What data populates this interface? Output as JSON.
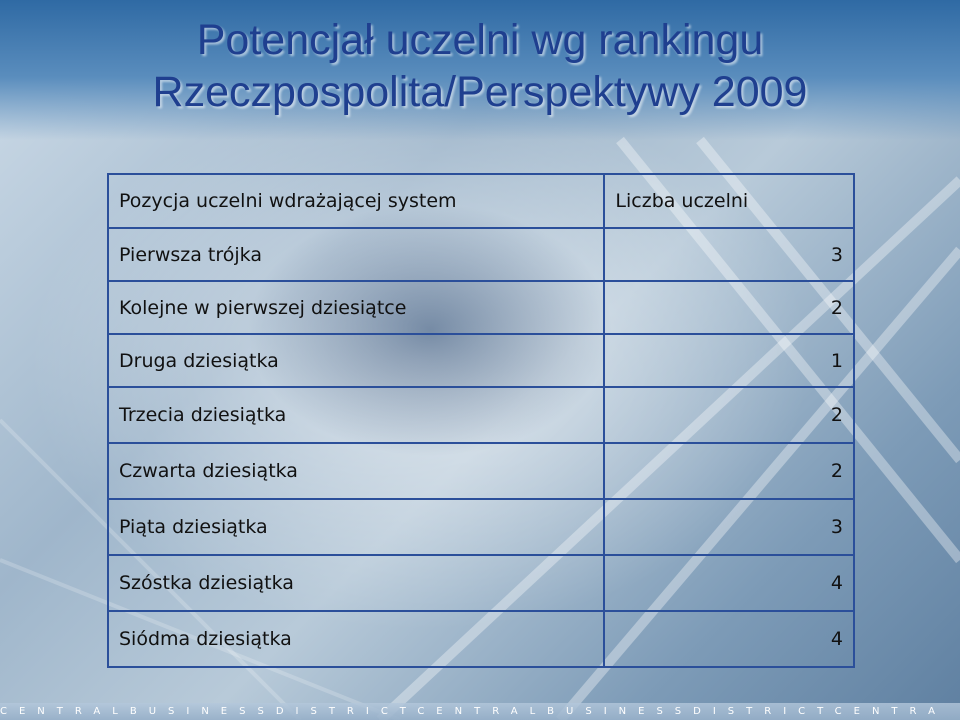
{
  "title": {
    "line1": "Potencjał uczelni wg rankingu",
    "line2": "Rzeczpospolita/Perspektywy 2009"
  },
  "table": {
    "headers": [
      "Pozycja uczelni wdrażającej system",
      "Liczba uczelni"
    ],
    "rows": [
      [
        "Pierwsza trójka",
        "3"
      ],
      [
        "Kolejne w pierwszej dziesiątce",
        "2"
      ],
      [
        "Druga dziesiątka",
        "1"
      ],
      [
        "Trzecia dziesiątka",
        "2"
      ],
      [
        "Czwarta dziesiątka",
        "2"
      ],
      [
        "Piąta dziesiątka",
        "3"
      ],
      [
        "Szóstka dziesiątka",
        "4"
      ],
      [
        "Siódma dziesiątka",
        "4"
      ]
    ]
  },
  "footer": {
    "text": "CENTRALBUSINESSDISTRICTCENTRALBUSINESSDISTRICTCENTRA"
  }
}
